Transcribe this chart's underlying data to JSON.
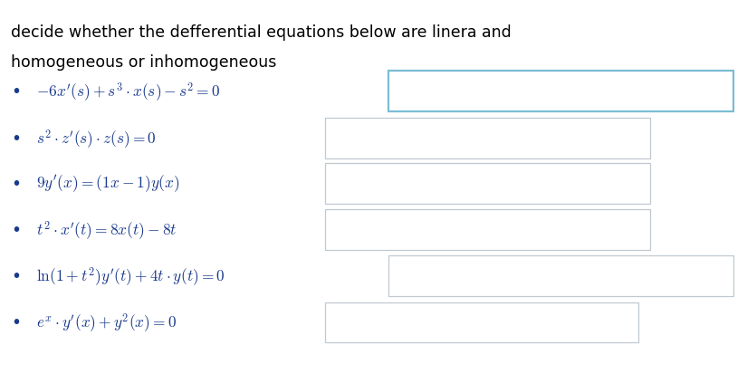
{
  "title_line1": "decide whether the defferential equations below are linera and",
  "title_line2": "homogeneous or inhomogeneous",
  "equations": [
    "$-6x'(s) + s^3 \\cdot x(s) - s^2 = 0$",
    "$s^2 \\cdot z'(s) \\cdot z(s) = 0$",
    "$9y'(x) = (1x - 1)y(x)$",
    "$t^2 \\cdot x'(t) = 8x(t) - 8t$",
    "$\\ln(1 + t^2)y'(t) + 4t \\cdot y(t) = 0$",
    "$e^x \\cdot y'(x) + y^2(x) = 0$"
  ],
  "background_color": "#ffffff",
  "text_color": "#1a3a8c",
  "title_color": "#000000",
  "box_border_color_first": "#7bbdd4",
  "box_border_color_rest": "#c0c8d0",
  "box_fill_color": "#ffffff",
  "title_fontsize": 12.5,
  "eq_fontsize": 12.5
}
